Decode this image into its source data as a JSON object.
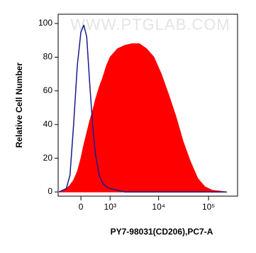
{
  "chart_data": {
    "type": "histogram",
    "watermark": "WWW.PTGLAB.COM",
    "x_label": "PY7-98031(CD206),PC7-A",
    "y_label": "Relative Cell Number",
    "xscale": "biexponential",
    "x": [
      -664,
      -405,
      -294,
      -191,
      -94,
      0,
      75,
      152,
      231,
      315,
      405,
      526,
      664,
      821,
      1000,
      1448,
      2063,
      2912,
      4097,
      5747,
      8050,
      11290,
      15760,
      22080,
      30910,
      43270,
      60540,
      84740,
      118500,
      166000,
      232000
    ],
    "series": [
      {
        "color": "#ff0000",
        "fill": true,
        "values": [
          0,
          2,
          4,
          7,
          12,
          20,
          28,
          35,
          42,
          48,
          55,
          62,
          68,
          75,
          80,
          85,
          87,
          88,
          88,
          85,
          80,
          70,
          58,
          45,
          30,
          18,
          8,
          3,
          1,
          0.5,
          0
        ]
      },
      {
        "color": "#1a1a8c",
        "fill": false,
        "values": [
          0,
          2,
          10,
          40,
          75,
          95,
          99,
          92,
          65,
          40,
          22,
          10,
          5,
          3,
          2,
          1,
          0,
          0,
          0,
          0,
          0,
          0,
          0,
          0,
          0,
          0,
          0,
          0,
          0,
          0,
          0
        ]
      }
    ],
    "xlim": [
      -700,
      380000
    ],
    "xticks": [
      0,
      {
        "value": 1000,
        "label": "10³"
      },
      {
        "value": 10000,
        "label": "10⁴"
      },
      {
        "value": 100000,
        "label": "10⁵"
      }
    ],
    "ylim": [
      -2.5,
      105.5
    ],
    "yticks": [
      0,
      20,
      40,
      60,
      80,
      100
    ]
  }
}
